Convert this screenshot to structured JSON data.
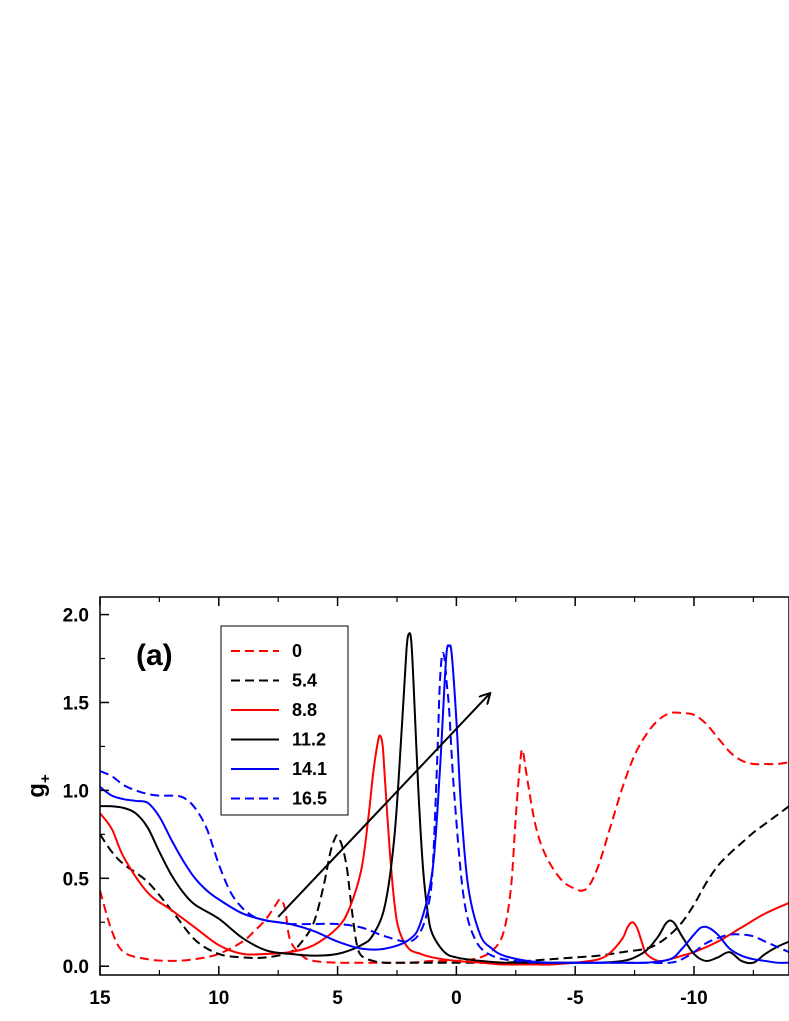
{
  "chart_data": {
    "type": "line",
    "panel_label": "(a)",
    "ylabel": "g",
    "ylabel_subscript": "+",
    "xlim": [
      15,
      -14
    ],
    "ylim": [
      -0.05,
      2.1
    ],
    "x_ticks": [
      15,
      10,
      5,
      0,
      -5,
      -10
    ],
    "x_tick_labels": [
      "15",
      "10",
      "5",
      "0",
      "-5",
      "-10"
    ],
    "y_ticks": [
      0.0,
      0.5,
      1.0,
      1.5,
      2.0
    ],
    "y_tick_labels": [
      "0.0",
      "0.5",
      "1.0",
      "1.5",
      "2.0"
    ],
    "grid": false,
    "legend_position": "top-left",
    "arrow": {
      "from": [
        7.5,
        0.28
      ],
      "to": [
        -1.4,
        1.55
      ]
    },
    "series": [
      {
        "name": "0",
        "color": "#ff0000",
        "dash": true,
        "x": [
          15,
          14.5,
          14,
          13,
          12,
          11,
          10,
          9,
          8.5,
          8,
          7.6,
          7.4,
          7.2,
          7,
          6.5,
          6,
          5,
          4,
          3,
          2,
          1,
          0,
          -1,
          -1.6,
          -2,
          -2.3,
          -2.5,
          -2.7,
          -2.8,
          -3,
          -3.3,
          -3.6,
          -4,
          -4.5,
          -5,
          -5.3,
          -5.6,
          -6,
          -6.5,
          -7,
          -7.5,
          -8,
          -8.5,
          -9,
          -9.5,
          -10,
          -10.5,
          -11,
          -11.5,
          -12,
          -12.5,
          -13,
          -13.5,
          -14
        ],
        "y": [
          0.43,
          0.2,
          0.08,
          0.04,
          0.03,
          0.04,
          0.07,
          0.14,
          0.2,
          0.27,
          0.35,
          0.38,
          0.32,
          0.15,
          0.06,
          0.03,
          0.02,
          0.02,
          0.02,
          0.02,
          0.03,
          0.03,
          0.05,
          0.1,
          0.2,
          0.45,
          0.85,
          1.18,
          1.22,
          1.05,
          0.82,
          0.68,
          0.57,
          0.48,
          0.44,
          0.43,
          0.46,
          0.58,
          0.8,
          1.02,
          1.2,
          1.32,
          1.4,
          1.44,
          1.44,
          1.43,
          1.38,
          1.3,
          1.22,
          1.17,
          1.15,
          1.15,
          1.15,
          1.16
        ]
      },
      {
        "name": "5.4",
        "color": "#000000",
        "dash": true,
        "x": [
          15,
          14.5,
          14,
          13,
          12,
          11,
          10,
          9,
          8,
          7,
          6.5,
          6,
          5.6,
          5.3,
          5.1,
          5,
          4.8,
          4.6,
          4.4,
          4.2,
          4,
          3.5,
          3,
          2,
          1,
          0,
          -1,
          -2,
          -3,
          -4,
          -5,
          -6,
          -7,
          -8,
          -8.5,
          -9,
          -9.5,
          -10,
          -10.5,
          -11,
          -11.5,
          -12,
          -12.5,
          -13,
          -13.5,
          -14
        ],
        "y": [
          0.75,
          0.65,
          0.58,
          0.48,
          0.32,
          0.15,
          0.07,
          0.05,
          0.05,
          0.08,
          0.14,
          0.25,
          0.45,
          0.65,
          0.73,
          0.74,
          0.68,
          0.55,
          0.32,
          0.13,
          0.06,
          0.03,
          0.02,
          0.02,
          0.02,
          0.02,
          0.02,
          0.02,
          0.03,
          0.04,
          0.05,
          0.06,
          0.08,
          0.1,
          0.13,
          0.18,
          0.25,
          0.35,
          0.47,
          0.57,
          0.64,
          0.7,
          0.76,
          0.81,
          0.86,
          0.91
        ]
      },
      {
        "name": "8.8",
        "color": "#ff0000",
        "dash": false,
        "x": [
          15,
          14.5,
          14,
          13,
          12,
          11,
          10,
          9,
          8,
          7,
          6,
          5,
          4.5,
          4,
          3.7,
          3.5,
          3.3,
          3.2,
          3.1,
          3,
          2.8,
          2.6,
          2.4,
          2,
          1.5,
          1,
          0,
          -1,
          -2,
          -3,
          -4,
          -5,
          -6,
          -6.5,
          -7,
          -7.2,
          -7.4,
          -7.6,
          -7.8,
          -8,
          -8.5,
          -9,
          -9.5,
          -10,
          -11,
          -12,
          -13,
          -14
        ],
        "y": [
          0.87,
          0.78,
          0.62,
          0.42,
          0.32,
          0.22,
          0.12,
          0.07,
          0.07,
          0.08,
          0.12,
          0.22,
          0.33,
          0.55,
          0.85,
          1.1,
          1.28,
          1.31,
          1.25,
          1.05,
          0.65,
          0.35,
          0.2,
          0.1,
          0.07,
          0.05,
          0.03,
          0.02,
          0.01,
          0.01,
          0.01,
          0.02,
          0.04,
          0.08,
          0.16,
          0.22,
          0.25,
          0.22,
          0.14,
          0.07,
          0.03,
          0.04,
          0.06,
          0.08,
          0.14,
          0.22,
          0.3,
          0.36
        ]
      },
      {
        "name": "11.2",
        "color": "#000000",
        "dash": false,
        "x": [
          15,
          14.5,
          14,
          13.5,
          13,
          12.5,
          12,
          11.5,
          11,
          10,
          9,
          8,
          7,
          6,
          5,
          4,
          3.5,
          3,
          2.6,
          2.3,
          2.1,
          2,
          1.9,
          1.8,
          1.6,
          1.4,
          1.2,
          1,
          0.5,
          0,
          -1,
          -2,
          -3,
          -4,
          -5,
          -6,
          -7,
          -7.5,
          -8,
          -8.5,
          -8.8,
          -9,
          -9.2,
          -9.5,
          -10,
          -10.5,
          -11,
          -11.5,
          -12,
          -12.5,
          -13,
          -13.5,
          -14
        ],
        "y": [
          0.91,
          0.91,
          0.9,
          0.87,
          0.79,
          0.65,
          0.52,
          0.42,
          0.35,
          0.27,
          0.16,
          0.09,
          0.07,
          0.06,
          0.07,
          0.12,
          0.18,
          0.35,
          0.75,
          1.35,
          1.8,
          1.89,
          1.85,
          1.6,
          1.0,
          0.55,
          0.3,
          0.18,
          0.08,
          0.05,
          0.03,
          0.02,
          0.02,
          0.02,
          0.02,
          0.02,
          0.03,
          0.05,
          0.09,
          0.17,
          0.24,
          0.26,
          0.24,
          0.17,
          0.07,
          0.03,
          0.05,
          0.08,
          0.03,
          0.02,
          0.07,
          0.11,
          0.14
        ]
      },
      {
        "name": "14.1",
        "color": "#0000ff",
        "dash": false,
        "x": [
          15,
          14.5,
          14,
          13.5,
          13,
          12.5,
          12,
          11.5,
          11,
          10.5,
          10,
          9,
          8,
          7,
          6,
          5,
          4,
          3,
          2,
          1.5,
          1,
          0.7,
          0.5,
          0.4,
          0.3,
          0.2,
          0,
          -0.2,
          -0.5,
          -1,
          -1.5,
          -2,
          -3,
          -4,
          -5,
          -6,
          -7,
          -8,
          -9,
          -9.5,
          -10,
          -10.3,
          -10.6,
          -11,
          -11.5,
          -12,
          -12.5,
          -13,
          -13.5,
          -14
        ],
        "y": [
          1.02,
          0.97,
          0.95,
          0.94,
          0.93,
          0.85,
          0.72,
          0.6,
          0.5,
          0.43,
          0.38,
          0.3,
          0.26,
          0.24,
          0.2,
          0.14,
          0.1,
          0.1,
          0.15,
          0.25,
          0.55,
          1.1,
          1.6,
          1.8,
          1.82,
          1.78,
          1.4,
          0.9,
          0.45,
          0.18,
          0.1,
          0.06,
          0.03,
          0.02,
          0.02,
          0.02,
          0.02,
          0.02,
          0.04,
          0.1,
          0.18,
          0.22,
          0.22,
          0.18,
          0.1,
          0.06,
          0.04,
          0.03,
          0.02,
          0.02
        ]
      },
      {
        "name": "16.5",
        "color": "#0000ff",
        "dash": true,
        "x": [
          15,
          14.5,
          14,
          13.5,
          13,
          12.5,
          12,
          11.5,
          11,
          10.5,
          10,
          9.5,
          9,
          8.5,
          8,
          7.5,
          7,
          6,
          5,
          4,
          3,
          2,
          1.5,
          1.2,
          1,
          0.8,
          0.7,
          0.6,
          0.5,
          0.4,
          0.3,
          0.1,
          -0.3,
          -0.8,
          -1.5,
          -2.5,
          -3.5,
          -5,
          -7,
          -8,
          -9,
          -9.5,
          -10,
          -10.5,
          -11,
          -11.5,
          -12,
          -12.5,
          -13,
          -13.5,
          -14
        ],
        "y": [
          1.11,
          1.08,
          1.03,
          1.0,
          0.98,
          0.97,
          0.97,
          0.96,
          0.9,
          0.78,
          0.58,
          0.42,
          0.33,
          0.28,
          0.26,
          0.25,
          0.24,
          0.24,
          0.24,
          0.22,
          0.17,
          0.14,
          0.2,
          0.33,
          0.55,
          1.2,
          1.6,
          1.77,
          1.75,
          1.6,
          1.45,
          1.0,
          0.4,
          0.15,
          0.06,
          0.03,
          0.02,
          0.02,
          0.02,
          0.02,
          0.02,
          0.04,
          0.08,
          0.13,
          0.16,
          0.18,
          0.18,
          0.17,
          0.14,
          0.11,
          0.08
        ]
      }
    ]
  }
}
